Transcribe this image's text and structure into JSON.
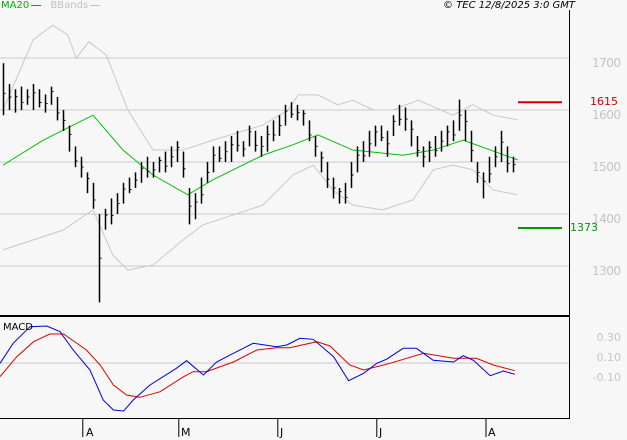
{
  "header": {
    "legend_ma": "MA20",
    "legend_bbands": "BBands",
    "copyright": "© TEC 12/8/2025 3:0 GMT"
  },
  "colors": {
    "ma": "#00c000",
    "bbands": "#c8c8c8",
    "bars": "#000000",
    "macd": "#0000dd",
    "signal": "#dd0000",
    "resistance": "#cc0000",
    "support": "#009900",
    "grid": "#c8c8c8"
  },
  "price_axis": {
    "labels": [
      "1700",
      "1600",
      "1500",
      "1400",
      "1300"
    ],
    "values": [
      1700,
      1600,
      1500,
      1400,
      1300
    ]
  },
  "levels": {
    "resistance": {
      "label": "1615",
      "value": 1615
    },
    "support": {
      "label": "1373",
      "value": 1373
    }
  },
  "macd_panel": {
    "title": "MACD",
    "labels": [
      "0.30",
      "0.10",
      "-0.10"
    ],
    "values": [
      0.3,
      0.1,
      -0.1
    ]
  },
  "time_axis": {
    "months": [
      "A",
      "M",
      "J",
      "J",
      "A"
    ],
    "month_bar_index": [
      13.3,
      29.3,
      45.8,
      62.3,
      80.5
    ]
  },
  "chart_data": {
    "type": "ohlc",
    "bars_high_low": [
      [
        1690,
        1590
      ],
      [
        1650,
        1600
      ],
      [
        1640,
        1595
      ],
      [
        1645,
        1600
      ],
      [
        1640,
        1610
      ],
      [
        1650,
        1600
      ],
      [
        1640,
        1605
      ],
      [
        1630,
        1595
      ],
      [
        1645,
        1610
      ],
      [
        1625,
        1580
      ],
      [
        1600,
        1560
      ],
      [
        1570,
        1520
      ],
      [
        1530,
        1490
      ],
      [
        1510,
        1470
      ],
      [
        1480,
        1440
      ],
      [
        1460,
        1410
      ],
      [
        1400,
        1230
      ],
      [
        1410,
        1370
      ],
      [
        1430,
        1380
      ],
      [
        1440,
        1400
      ],
      [
        1460,
        1420
      ],
      [
        1470,
        1440
      ],
      [
        1480,
        1450
      ],
      [
        1500,
        1460
      ],
      [
        1510,
        1470
      ],
      [
        1500,
        1470
      ],
      [
        1510,
        1480
      ],
      [
        1520,
        1480
      ],
      [
        1530,
        1490
      ],
      [
        1540,
        1500
      ],
      [
        1520,
        1470
      ],
      [
        1450,
        1380
      ],
      [
        1440,
        1390
      ],
      [
        1470,
        1420
      ],
      [
        1500,
        1460
      ],
      [
        1530,
        1480
      ],
      [
        1530,
        1500
      ],
      [
        1540,
        1500
      ],
      [
        1550,
        1500
      ],
      [
        1560,
        1520
      ],
      [
        1540,
        1510
      ],
      [
        1570,
        1530
      ],
      [
        1560,
        1520
      ],
      [
        1550,
        1510
      ],
      [
        1570,
        1520
      ],
      [
        1580,
        1540
      ],
      [
        1590,
        1550
      ],
      [
        1610,
        1570
      ],
      [
        1615,
        1585
      ],
      [
        1610,
        1580
      ],
      [
        1600,
        1570
      ],
      [
        1580,
        1540
      ],
      [
        1550,
        1510
      ],
      [
        1520,
        1480
      ],
      [
        1500,
        1450
      ],
      [
        1470,
        1430
      ],
      [
        1450,
        1420
      ],
      [
        1460,
        1420
      ],
      [
        1500,
        1450
      ],
      [
        1530,
        1480
      ],
      [
        1540,
        1500
      ],
      [
        1560,
        1510
      ],
      [
        1570,
        1530
      ],
      [
        1570,
        1540
      ],
      [
        1560,
        1510
      ],
      [
        1590,
        1550
      ],
      [
        1610,
        1570
      ],
      [
        1605,
        1560
      ],
      [
        1580,
        1530
      ],
      [
        1550,
        1510
      ],
      [
        1530,
        1490
      ],
      [
        1540,
        1500
      ],
      [
        1550,
        1510
      ],
      [
        1560,
        1520
      ],
      [
        1570,
        1530
      ],
      [
        1580,
        1540
      ],
      [
        1620,
        1560
      ],
      [
        1600,
        1540
      ],
      [
        1560,
        1500
      ],
      [
        1500,
        1460
      ],
      [
        1480,
        1430
      ],
      [
        1510,
        1460
      ],
      [
        1530,
        1490
      ],
      [
        1560,
        1500
      ],
      [
        1530,
        1480
      ],
      [
        1510,
        1480
      ]
    ],
    "ma20": [
      [
        0,
        1494
      ],
      [
        6.7,
        1542
      ],
      [
        15,
        1590
      ],
      [
        20,
        1523
      ],
      [
        25,
        1475
      ],
      [
        30.8,
        1437
      ],
      [
        35,
        1466
      ],
      [
        43.3,
        1513
      ],
      [
        48.3,
        1533
      ],
      [
        52.5,
        1552
      ],
      [
        58.3,
        1523
      ],
      [
        66.7,
        1513
      ],
      [
        71.7,
        1523
      ],
      [
        76.7,
        1542
      ],
      [
        85.8,
        1504
      ]
    ],
    "bband_upper": [
      [
        0,
        1600
      ],
      [
        5,
        1735
      ],
      [
        8.3,
        1763
      ],
      [
        10.8,
        1744
      ],
      [
        12.2,
        1700
      ],
      [
        14.3,
        1731
      ],
      [
        17.2,
        1706
      ],
      [
        20.8,
        1600
      ],
      [
        25,
        1523
      ],
      [
        30,
        1523
      ],
      [
        35,
        1542
      ],
      [
        43.3,
        1571
      ],
      [
        47.5,
        1600
      ],
      [
        49.2,
        1629
      ],
      [
        52.5,
        1629
      ],
      [
        55.8,
        1610
      ],
      [
        58.3,
        1619
      ],
      [
        61.7,
        1600
      ],
      [
        65,
        1600
      ],
      [
        69.2,
        1619
      ],
      [
        75,
        1590
      ],
      [
        78.3,
        1610
      ],
      [
        81.7,
        1590
      ],
      [
        85.8,
        1581
      ]
    ],
    "bband_lower": [
      [
        0,
        1331
      ],
      [
        10,
        1369
      ],
      [
        15,
        1408
      ],
      [
        18.3,
        1321
      ],
      [
        20.8,
        1292
      ],
      [
        25,
        1302
      ],
      [
        30,
        1350
      ],
      [
        33.3,
        1379
      ],
      [
        38.3,
        1398
      ],
      [
        43.3,
        1417
      ],
      [
        48.3,
        1475
      ],
      [
        51.7,
        1494
      ],
      [
        55,
        1446
      ],
      [
        58.3,
        1417
      ],
      [
        63.3,
        1408
      ],
      [
        68.3,
        1427
      ],
      [
        71.7,
        1485
      ],
      [
        75,
        1494
      ],
      [
        78.3,
        1485
      ],
      [
        81.7,
        1446
      ],
      [
        85.8,
        1437
      ]
    ],
    "macd": [
      [
        -0.5,
        0.037
      ],
      [
        1.7,
        0.237
      ],
      [
        4.5,
        0.403
      ],
      [
        7.3,
        0.41
      ],
      [
        9.5,
        0.353
      ],
      [
        11.7,
        0.17
      ],
      [
        14.5,
        -0.03
      ],
      [
        16.7,
        -0.33
      ],
      [
        18.4,
        -0.43
      ],
      [
        20.1,
        -0.44
      ],
      [
        21.7,
        -0.33
      ],
      [
        24.5,
        -0.18
      ],
      [
        28.9,
        -0.013
      ],
      [
        30.6,
        0.063
      ],
      [
        33.4,
        -0.08
      ],
      [
        35.6,
        0.05
      ],
      [
        38.4,
        0.137
      ],
      [
        41.7,
        0.237
      ],
      [
        45.6,
        0.203
      ],
      [
        47.3,
        0.22
      ],
      [
        49.5,
        0.287
      ],
      [
        51.7,
        0.277
      ],
      [
        55.1,
        0.103
      ],
      [
        57.6,
        -0.137
      ],
      [
        60.1,
        -0.063
      ],
      [
        62.3,
        0.037
      ],
      [
        63.9,
        0.077
      ],
      [
        66.7,
        0.187
      ],
      [
        68.9,
        0.187
      ],
      [
        71.7,
        0.067
      ],
      [
        75.1,
        0.05
      ],
      [
        76.7,
        0.113
      ],
      [
        78.4,
        0.067
      ],
      [
        81.2,
        -0.087
      ],
      [
        83.4,
        -0.04
      ],
      [
        85.3,
        -0.073
      ]
    ],
    "signal": [
      [
        -0.5,
        -0.097
      ],
      [
        2.3,
        0.103
      ],
      [
        5.1,
        0.253
      ],
      [
        7.8,
        0.33
      ],
      [
        10.1,
        0.33
      ],
      [
        13.9,
        0.17
      ],
      [
        16.2,
        0.02
      ],
      [
        18.4,
        -0.18
      ],
      [
        20.6,
        -0.28
      ],
      [
        22.8,
        -0.303
      ],
      [
        26.2,
        -0.247
      ],
      [
        30.1,
        -0.097
      ],
      [
        31.7,
        -0.047
      ],
      [
        33.9,
        -0.047
      ],
      [
        38.4,
        0.05
      ],
      [
        42.3,
        0.17
      ],
      [
        45.6,
        0.193
      ],
      [
        47.8,
        0.193
      ],
      [
        52.3,
        0.253
      ],
      [
        54.5,
        0.21
      ],
      [
        57.8,
        0.02
      ],
      [
        60.1,
        -0.03
      ],
      [
        64.5,
        0.037
      ],
      [
        70.1,
        0.137
      ],
      [
        75.1,
        0.087
      ],
      [
        78.9,
        0.087
      ],
      [
        81.7,
        0.02
      ],
      [
        85.3,
        -0.037
      ]
    ],
    "ylim": [
      1220,
      1780
    ]
  }
}
